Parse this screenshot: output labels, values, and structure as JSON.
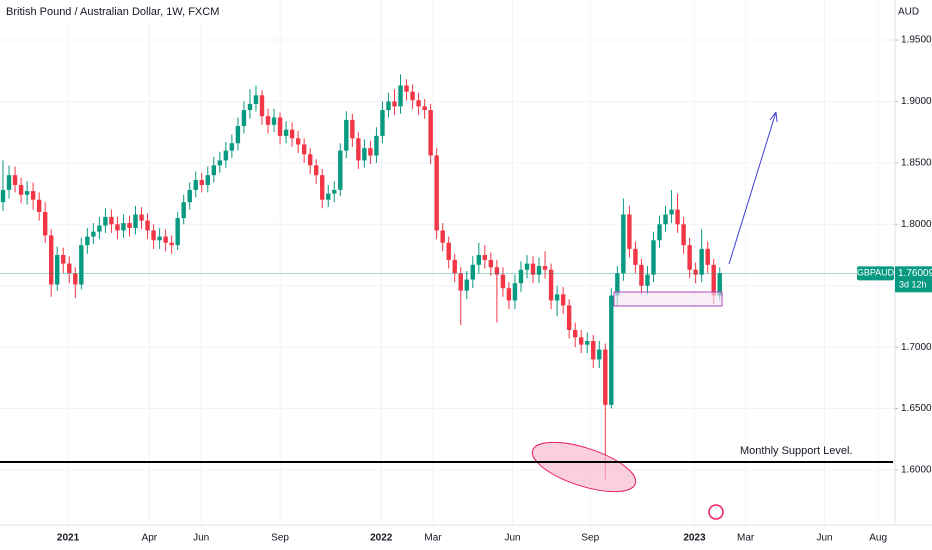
{
  "chart_data": {
    "type": "candlestick",
    "title": "British Pound / Australian Dollar, 1W, FXCM",
    "y_unit": "AUD",
    "grid": true,
    "xlim": [
      -0.5,
      148.1
    ],
    "xticks": [
      {
        "value": 10.8,
        "label": "2021"
      },
      {
        "value": 24.3,
        "label": "Apr"
      },
      {
        "value": 32.9,
        "label": "Jun"
      },
      {
        "value": 46.0,
        "label": "Sep"
      },
      {
        "value": 62.8,
        "label": "2022"
      },
      {
        "value": 71.4,
        "label": "Mar"
      },
      {
        "value": 84.6,
        "label": "Jun"
      },
      {
        "value": 97.5,
        "label": "Sep"
      },
      {
        "value": 114.8,
        "label": "2023"
      },
      {
        "value": 123.3,
        "label": "Mar"
      },
      {
        "value": 136.4,
        "label": "Jun"
      },
      {
        "value": 145.3,
        "label": "Aug"
      }
    ],
    "ylim": [
      1.5552,
      1.9826
    ],
    "yticks": [
      {
        "value": 1.6,
        "label": "1.60000"
      },
      {
        "value": 1.65,
        "label": "1.65000"
      },
      {
        "value": 1.7,
        "label": "1.70000"
      },
      {
        "value": 1.75,
        "label": "1.75000"
      },
      {
        "value": 1.8,
        "label": "1.80000"
      },
      {
        "value": 1.85,
        "label": "1.85000"
      },
      {
        "value": 1.9,
        "label": "1.90000"
      },
      {
        "value": 1.95,
        "label": "1.95000"
      }
    ],
    "last_price": 1.76009,
    "time_left": "3d 12h",
    "support": {
      "label": "Monthly Support Level.",
      "value": 1.6065
    },
    "series": [
      {
        "name": "GBPAUD",
        "up_color": "#089981",
        "down_color": "#f23645",
        "open": [
          1.818,
          1.828,
          1.84,
          1.832,
          1.824,
          1.827,
          1.82,
          1.81,
          1.791,
          1.751,
          1.775,
          1.768,
          1.76,
          1.751,
          1.783,
          1.79,
          1.794,
          1.799,
          1.806,
          1.8,
          1.795,
          1.801,
          1.797,
          1.808,
          1.803,
          1.795,
          1.787,
          1.79,
          1.785,
          1.783,
          1.805,
          1.818,
          1.828,
          1.836,
          1.832,
          1.84,
          1.848,
          1.852,
          1.86,
          1.866,
          1.88,
          1.893,
          1.898,
          1.905,
          1.888,
          1.881,
          1.887,
          1.872,
          1.877,
          1.87,
          1.865,
          1.857,
          1.848,
          1.84,
          1.82,
          1.825,
          1.828,
          1.86,
          1.885,
          1.87,
          1.852,
          1.862,
          1.856,
          1.872,
          1.893,
          1.9,
          1.896,
          1.913,
          1.908,
          1.901,
          1.896,
          1.893,
          1.856,
          1.795,
          1.785,
          1.771,
          1.76,
          1.746,
          1.755,
          1.767,
          1.775,
          1.771,
          1.765,
          1.759,
          1.748,
          1.738,
          1.752,
          1.763,
          1.768,
          1.759,
          1.766,
          1.763,
          1.738,
          1.743,
          1.734,
          1.714,
          1.708,
          1.702,
          1.705,
          1.69,
          1.698,
          1.653,
          1.742,
          1.76,
          1.808,
          1.78,
          1.767,
          1.75,
          1.759,
          1.787,
          1.8,
          1.808,
          1.812,
          1.8,
          1.783,
          1.763,
          1.759,
          1.78,
          1.767,
          1.742
        ],
        "high": [
          1.852,
          1.848,
          1.847,
          1.838,
          1.835,
          1.834,
          1.826,
          1.818,
          1.796,
          1.782,
          1.781,
          1.774,
          1.765,
          1.789,
          1.797,
          1.801,
          1.806,
          1.813,
          1.812,
          1.806,
          1.808,
          1.807,
          1.815,
          1.814,
          1.809,
          1.8,
          1.797,
          1.796,
          1.791,
          1.81,
          1.824,
          1.834,
          1.843,
          1.842,
          1.847,
          1.855,
          1.859,
          1.867,
          1.873,
          1.887,
          1.9,
          1.91,
          1.913,
          1.909,
          1.894,
          1.894,
          1.891,
          1.884,
          1.883,
          1.876,
          1.87,
          1.862,
          1.853,
          1.845,
          1.832,
          1.835,
          1.866,
          1.892,
          1.89,
          1.875,
          1.869,
          1.868,
          1.879,
          1.9,
          1.907,
          1.91,
          1.922,
          1.918,
          1.914,
          1.907,
          1.902,
          1.898,
          1.862,
          1.801,
          1.79,
          1.776,
          1.765,
          1.762,
          1.774,
          1.785,
          1.783,
          1.777,
          1.771,
          1.765,
          1.753,
          1.759,
          1.77,
          1.775,
          1.774,
          1.773,
          1.778,
          1.768,
          1.75,
          1.749,
          1.739,
          1.72,
          1.714,
          1.712,
          1.71,
          1.705,
          1.703,
          1.748,
          1.766,
          1.821,
          1.815,
          1.786,
          1.772,
          1.766,
          1.794,
          1.807,
          1.815,
          1.828,
          1.825,
          1.806,
          1.789,
          1.769,
          1.796,
          1.786,
          1.772,
          1.765
        ],
        "low": [
          1.811,
          1.821,
          1.826,
          1.817,
          1.816,
          1.812,
          1.803,
          1.785,
          1.741,
          1.746,
          1.76,
          1.752,
          1.74,
          1.747,
          1.776,
          1.784,
          1.788,
          1.793,
          1.793,
          1.788,
          1.789,
          1.79,
          1.792,
          1.796,
          1.788,
          1.78,
          1.78,
          1.778,
          1.776,
          1.779,
          1.8,
          1.812,
          1.822,
          1.826,
          1.826,
          1.834,
          1.842,
          1.846,
          1.854,
          1.86,
          1.874,
          1.886,
          1.892,
          1.881,
          1.874,
          1.875,
          1.865,
          1.866,
          1.863,
          1.858,
          1.85,
          1.841,
          1.833,
          1.813,
          1.814,
          1.818,
          1.823,
          1.854,
          1.863,
          1.845,
          1.846,
          1.849,
          1.85,
          1.866,
          1.887,
          1.889,
          1.89,
          1.901,
          1.894,
          1.889,
          1.886,
          1.849,
          1.788,
          1.778,
          1.764,
          1.753,
          1.718,
          1.739,
          1.748,
          1.76,
          1.764,
          1.758,
          1.72,
          1.741,
          1.731,
          1.731,
          1.745,
          1.756,
          1.752,
          1.752,
          1.756,
          1.731,
          1.725,
          1.727,
          1.707,
          1.7,
          1.695,
          1.695,
          1.683,
          1.683,
          1.592,
          1.65,
          1.734,
          1.754,
          1.773,
          1.76,
          1.743,
          1.743,
          1.753,
          1.781,
          1.794,
          1.801,
          1.793,
          1.776,
          1.756,
          1.752,
          1.753,
          1.76,
          1.735,
          1.738
        ],
        "close": [
          1.828,
          1.84,
          1.832,
          1.824,
          1.827,
          1.82,
          1.81,
          1.791,
          1.751,
          1.775,
          1.768,
          1.76,
          1.751,
          1.783,
          1.79,
          1.794,
          1.799,
          1.806,
          1.8,
          1.795,
          1.801,
          1.797,
          1.808,
          1.803,
          1.795,
          1.787,
          1.79,
          1.785,
          1.783,
          1.805,
          1.818,
          1.828,
          1.836,
          1.832,
          1.84,
          1.848,
          1.852,
          1.86,
          1.866,
          1.88,
          1.893,
          1.898,
          1.905,
          1.888,
          1.881,
          1.887,
          1.872,
          1.877,
          1.87,
          1.865,
          1.857,
          1.848,
          1.84,
          1.82,
          1.825,
          1.828,
          1.86,
          1.885,
          1.87,
          1.852,
          1.862,
          1.856,
          1.872,
          1.893,
          1.9,
          1.896,
          1.913,
          1.908,
          1.901,
          1.896,
          1.893,
          1.856,
          1.795,
          1.785,
          1.771,
          1.76,
          1.746,
          1.755,
          1.767,
          1.775,
          1.771,
          1.765,
          1.759,
          1.748,
          1.738,
          1.752,
          1.763,
          1.768,
          1.759,
          1.766,
          1.763,
          1.738,
          1.743,
          1.734,
          1.714,
          1.708,
          1.702,
          1.705,
          1.69,
          1.698,
          1.653,
          1.742,
          1.76,
          1.808,
          1.78,
          1.767,
          1.75,
          1.759,
          1.787,
          1.8,
          1.808,
          1.812,
          1.8,
          1.783,
          1.763,
          1.759,
          1.78,
          1.767,
          1.742,
          1.76009
        ]
      }
    ]
  }
}
